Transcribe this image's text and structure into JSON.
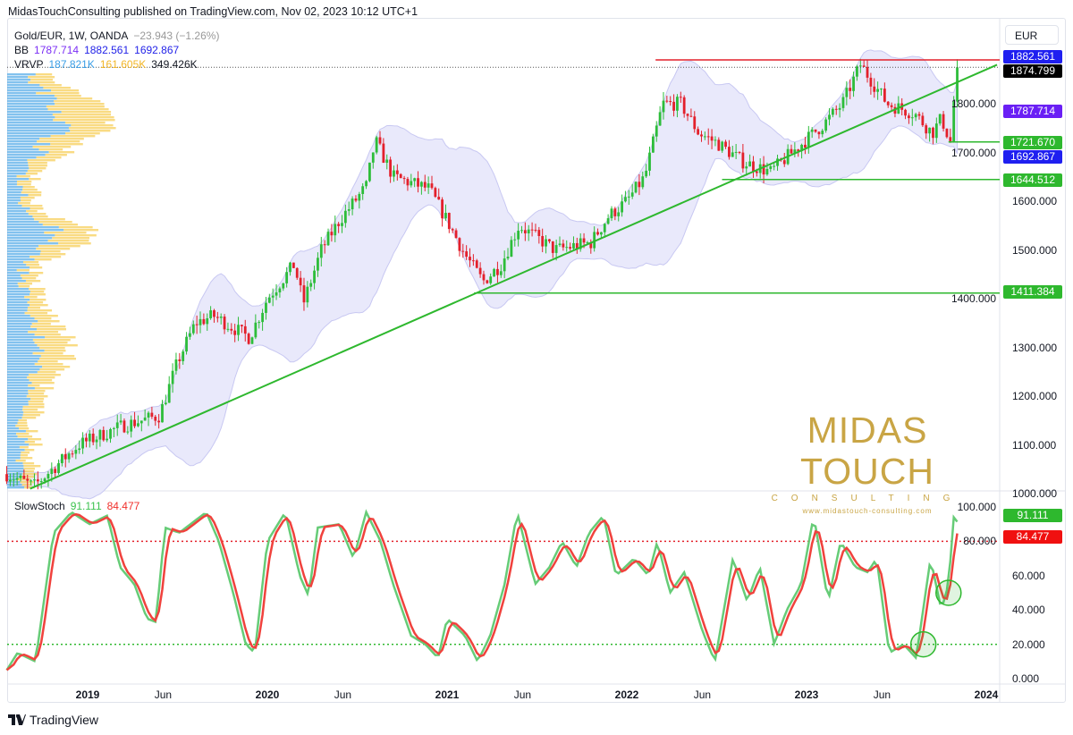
{
  "header": {
    "published": "MidasTouchConsulting published on TradingView.com, Nov 02, 2023 10:12 UTC+1"
  },
  "legend": {
    "symbol": "Gold/EUR, 1W, OANDA",
    "change": "−23.943 (−1.26%)",
    "bb_label": "BB",
    "bb_basis": "1787.714",
    "bb_upper": "1882.561",
    "bb_lower": "1692.867",
    "vrvp_label": "VRVP",
    "vrvp_up": "187.821K",
    "vrvp_down": "161.605K",
    "vrvp_total": "349.426K",
    "stoch_label": "SlowStoch",
    "stoch_k": "91.111",
    "stoch_d": "84.477"
  },
  "currency_button": "EUR",
  "logo": {
    "name": "MIDAS TOUCH",
    "sub": "CONSULTING",
    "url": "www.midastouch-consulting.com"
  },
  "footer": {
    "brand": "TradingView"
  },
  "colors": {
    "up": "#2dbd3a",
    "down": "#e3202b",
    "trend": "#2eb82e",
    "resistance": "#e3202b",
    "bb_fill": "#e9e9fb",
    "bb_line": "#c8c8f2",
    "stoch_k": "#66cc77",
    "stoch_d": "#f0423d",
    "vp_up": "#5aaee8",
    "vp_down": "#f7cf5a"
  },
  "chart_data": [
    {
      "type": "candlestick",
      "ylim": [
        1000,
        1900
      ],
      "price_ticks": [
        "1000.000",
        "1100.000",
        "1200.000",
        "1300.000",
        "1400.000",
        "1500.000",
        "1600.000",
        "1700.000",
        "1800.000"
      ],
      "time_ticks": [
        {
          "label": "2019",
          "t": 2019,
          "bold": true
        },
        {
          "label": "Jun",
          "t": 2019.42
        },
        {
          "label": "2020",
          "t": 2020,
          "bold": true
        },
        {
          "label": "Jun",
          "t": 2020.42
        },
        {
          "label": "2021",
          "t": 2021,
          "bold": true
        },
        {
          "label": "Jun",
          "t": 2021.42
        },
        {
          "label": "2022",
          "t": 2022,
          "bold": true
        },
        {
          "label": "Jun",
          "t": 2022.42
        },
        {
          "label": "2023",
          "t": 2023,
          "bold": true
        },
        {
          "label": "Jun",
          "t": 2023.42
        },
        {
          "label": "2024",
          "t": 2024,
          "bold": true
        }
      ],
      "approx_close": [
        [
          2018.55,
          1040
        ],
        [
          2018.7,
          1015
        ],
        [
          2018.95,
          1100
        ],
        [
          2019.2,
          1140
        ],
        [
          2019.4,
          1160
        ],
        [
          2019.5,
          1270
        ],
        [
          2019.6,
          1350
        ],
        [
          2019.7,
          1365
        ],
        [
          2019.9,
          1320
        ],
        [
          2020.0,
          1400
        ],
        [
          2020.15,
          1470
        ],
        [
          2020.2,
          1390
        ],
        [
          2020.3,
          1500
        ],
        [
          2020.4,
          1560
        ],
        [
          2020.55,
          1630
        ],
        [
          2020.6,
          1725
        ],
        [
          2020.7,
          1650
        ],
        [
          2020.9,
          1625
        ],
        [
          2021.0,
          1560
        ],
        [
          2021.1,
          1490
        ],
        [
          2021.2,
          1435
        ],
        [
          2021.3,
          1470
        ],
        [
          2021.4,
          1550
        ],
        [
          2021.5,
          1525
        ],
        [
          2021.6,
          1500
        ],
        [
          2021.8,
          1515
        ],
        [
          2021.9,
          1570
        ],
        [
          2022.0,
          1600
        ],
        [
          2022.1,
          1650
        ],
        [
          2022.2,
          1800
        ],
        [
          2022.3,
          1800
        ],
        [
          2022.4,
          1740
        ],
        [
          2022.5,
          1720
        ],
        [
          2022.65,
          1680
        ],
        [
          2022.8,
          1660
        ],
        [
          2022.95,
          1710
        ],
        [
          2023.1,
          1760
        ],
        [
          2023.2,
          1800
        ],
        [
          2023.3,
          1880
        ],
        [
          2023.45,
          1800
        ],
        [
          2023.6,
          1780
        ],
        [
          2023.7,
          1740
        ],
        [
          2023.75,
          1770
        ],
        [
          2023.8,
          1722
        ],
        [
          2023.83,
          1850
        ],
        [
          2023.84,
          1875
        ]
      ],
      "price_tags": [
        {
          "label": "1882.561",
          "value": 1882.561,
          "color": "#1f1ff0"
        },
        {
          "label": "1874.799",
          "value": 1874.799,
          "color": "#000000"
        },
        {
          "label": "1787.714",
          "value": 1787.714,
          "color": "#6a1ff5"
        },
        {
          "label": "1721.670",
          "value": 1721.67,
          "color": "#2eb82e"
        },
        {
          "label": "1692.867",
          "value": 1692.867,
          "color": "#1f1ff0"
        },
        {
          "label": "1644.512",
          "value": 1644.512,
          "color": "#2eb82e"
        },
        {
          "label": "1411.384",
          "value": 1411.384,
          "color": "#2eb82e"
        }
      ],
      "horizontal_levels": [
        {
          "value": 1890,
          "from": 2022.16,
          "color": "#e3202b"
        },
        {
          "value": 1721.67,
          "from": 2023.79,
          "color": "#2eb82e"
        },
        {
          "value": 1644.512,
          "from": 2022.53,
          "color": "#2eb82e"
        },
        {
          "value": 1411.384,
          "from": 2021.15,
          "color": "#2eb82e"
        }
      ],
      "trendline": [
        [
          2018.68,
          1010
        ],
        [
          2024.06,
          1880
        ]
      ],
      "last_price": 1874.799
    },
    {
      "type": "line",
      "ylim": [
        0,
        100
      ],
      "y_ticks": [
        "0.000",
        "20.000",
        "40.000",
        "60.000",
        "80.000",
        "100.000"
      ],
      "bands": [
        80,
        20
      ],
      "k_approx": [
        [
          2018.55,
          5
        ],
        [
          2018.61,
          15
        ],
        [
          2018.71,
          10
        ],
        [
          2018.81,
          85
        ],
        [
          2018.91,
          97
        ],
        [
          2019.01,
          90
        ],
        [
          2019.11,
          95
        ],
        [
          2019.18,
          65
        ],
        [
          2019.26,
          55
        ],
        [
          2019.33,
          35
        ],
        [
          2019.38,
          33
        ],
        [
          2019.43,
          88
        ],
        [
          2019.51,
          85
        ],
        [
          2019.66,
          97
        ],
        [
          2019.73,
          80
        ],
        [
          2019.81,
          50
        ],
        [
          2019.88,
          20
        ],
        [
          2019.93,
          15
        ],
        [
          2020.0,
          80
        ],
        [
          2020.1,
          97
        ],
        [
          2020.18,
          60
        ],
        [
          2020.23,
          48
        ],
        [
          2020.28,
          88
        ],
        [
          2020.4,
          90
        ],
        [
          2020.48,
          70
        ],
        [
          2020.55,
          97
        ],
        [
          2020.63,
          80
        ],
        [
          2020.7,
          55
        ],
        [
          2020.8,
          25
        ],
        [
          2020.88,
          20
        ],
        [
          2020.95,
          12
        ],
        [
          2021.0,
          35
        ],
        [
          2021.1,
          25
        ],
        [
          2021.17,
          10
        ],
        [
          2021.24,
          25
        ],
        [
          2021.32,
          55
        ],
        [
          2021.39,
          97
        ],
        [
          2021.49,
          55
        ],
        [
          2021.57,
          65
        ],
        [
          2021.64,
          80
        ],
        [
          2021.72,
          65
        ],
        [
          2021.79,
          85
        ],
        [
          2021.87,
          95
        ],
        [
          2021.94,
          60
        ],
        [
          2022.04,
          70
        ],
        [
          2022.12,
          60
        ],
        [
          2022.17,
          80
        ],
        [
          2022.24,
          50
        ],
        [
          2022.32,
          62
        ],
        [
          2022.42,
          28
        ],
        [
          2022.49,
          10
        ],
        [
          2022.59,
          70
        ],
        [
          2022.67,
          45
        ],
        [
          2022.74,
          65
        ],
        [
          2022.82,
          20
        ],
        [
          2022.89,
          40
        ],
        [
          2022.97,
          55
        ],
        [
          2023.04,
          95
        ],
        [
          2023.12,
          45
        ],
        [
          2023.19,
          80
        ],
        [
          2023.27,
          65
        ],
        [
          2023.34,
          62
        ],
        [
          2023.39,
          70
        ],
        [
          2023.46,
          15
        ],
        [
          2023.54,
          20
        ],
        [
          2023.61,
          12
        ],
        [
          2023.69,
          70
        ],
        [
          2023.75,
          40
        ],
        [
          2023.79,
          55
        ],
        [
          2023.82,
          95
        ],
        [
          2023.84,
          91.111
        ]
      ],
      "last_k": 91.111,
      "last_d": 84.477,
      "highlight_circles": [
        [
          2023.65,
          20
        ],
        [
          2023.79,
          50
        ]
      ]
    }
  ]
}
